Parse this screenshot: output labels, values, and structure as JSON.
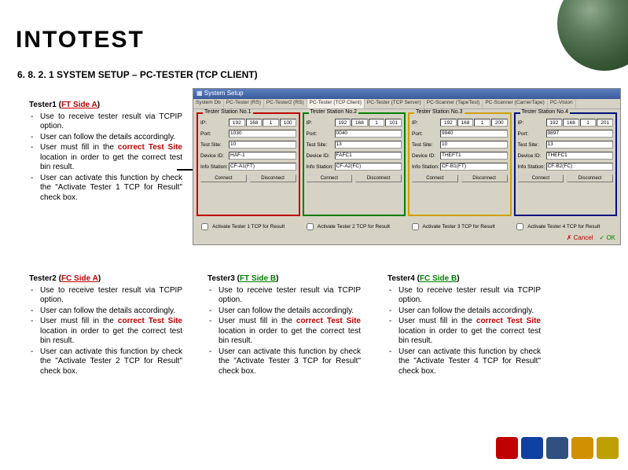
{
  "branding": {
    "logo": "INTOTEST"
  },
  "section_title": "6. 8. 2. 1 SYSTEM SETUP – PC-TESTER (TCP CLIENT)",
  "testers": {
    "t1": {
      "header_prefix": "Tester1 (",
      "side": "FT Side A",
      "header_suffix": ")",
      "side_class": "side-a",
      "bullets": [
        "Use to receive tester result via TCPIP option.",
        "User can follow the details accordingly.",
        [
          "User must fill in the ",
          "correct Test Site",
          " location in order to get the correct test bin result."
        ],
        "User can activate this function by check the \"Activate Tester 1 TCP for Result\" check box."
      ]
    },
    "t2": {
      "header_prefix": "Tester2 (",
      "side": "FC Side A",
      "header_suffix": ")",
      "side_class": "side-a",
      "bullets": [
        "Use to receive tester result via TCPIP option.",
        "User can follow the details accordingly.",
        [
          "User must fill in the ",
          "correct Test Site",
          " location in order to get the correct test bin result."
        ],
        "User can activate this function by check the \"Activate Tester 2 TCP for Result\" check box."
      ]
    },
    "t3": {
      "header_prefix": "Tester3 (",
      "side": "FT Side B",
      "header_suffix": ")",
      "side_class": "side-b",
      "bullets": [
        "Use to receive tester result via TCPIP option.",
        "User can follow the details accordingly.",
        [
          "User must fill in the ",
          "correct Test Site",
          " location in order to get the correct test bin result."
        ],
        "User can activate this function by check the \"Activate Tester 3 TCP for Result\" check box."
      ]
    },
    "t4": {
      "header_prefix": "Tester4 (",
      "side": "FC Side B",
      "header_suffix": ")",
      "side_class": "side-b",
      "bullets": [
        "Use to receive tester result via TCPIP option.",
        "User can follow the details accordingly.",
        [
          "User must fill in the ",
          "correct Test Site",
          " location in order to get the correct test bin result."
        ],
        "User can activate this function by check the \"Activate Tester 4 TCP for Result\" check box."
      ]
    }
  },
  "dialog": {
    "title": "System Setup",
    "tabs": [
      "System Db",
      "PC-Tester (RS)",
      "PC-Tester2 (RS)",
      "PC-Tester (TCP Client)",
      "PC-Tester (TCP Server)",
      "PC-Scanner (TapeTest)",
      "PC-Scanner (CarrierTape)",
      "PC-Vision"
    ],
    "active_tab": 3,
    "stations": [
      {
        "legend": "Tester Station No.1",
        "border_color": "#c00000",
        "ip": [
          "192",
          "168",
          "1",
          "100"
        ],
        "port": "1030",
        "test_site": "10",
        "device_id": "HAF-1",
        "info_station": "CF-A1(FT)",
        "connect": "Connect",
        "disconnect": "Disconnect"
      },
      {
        "legend": "Tester Station No.2",
        "border_color": "#008000",
        "ip": [
          "192",
          "168",
          "1",
          "101"
        ],
        "port": "0040",
        "test_site": "13",
        "device_id": "FAFC1",
        "info_station": "CF-A2(FC)",
        "connect": "Connect",
        "disconnect": "Disconnect"
      },
      {
        "legend": "Tester Station No.3",
        "border_color": "#d0a000",
        "ip": [
          "192",
          "168",
          "1",
          "200"
        ],
        "port": "9940",
        "test_site": "10",
        "device_id": "THEFT1",
        "info_station": "CF-B1(FT)",
        "connect": "Connect",
        "disconnect": "Disconnect"
      },
      {
        "legend": "Tester Station No.4",
        "border_color": "#001080",
        "ip": [
          "192",
          "168",
          "1",
          "201"
        ],
        "port": "9897",
        "test_site": "13",
        "device_id": "THEFC1",
        "info_station": "CF-B2(FC)",
        "connect": "Connect",
        "disconnect": "Disconnect"
      }
    ],
    "labels": {
      "ip": "IP:",
      "port": "Port:",
      "test_site": "Test Site:",
      "device_id": "Device ID:",
      "info_station": "Info Station:"
    },
    "checks": [
      "Activate Tester 1 TCP for Result",
      "Activate Tester 2 TCP for Result",
      "Activate Tester 3 TCP for Result",
      "Activate Tester 4 TCP for Result"
    ],
    "buttons": {
      "cancel": "✗ Cancel",
      "ok": "✓ OK"
    }
  },
  "colors": {
    "side_a": "#c00000",
    "side_b": "#008000",
    "dialog_bg": "#d6d2c4"
  },
  "footer_logos": [
    {
      "bg": "#c00000"
    },
    {
      "bg": "#1040a0"
    },
    {
      "bg": "#305080"
    },
    {
      "bg": "#d09000"
    },
    {
      "bg": "#c0a000"
    }
  ]
}
